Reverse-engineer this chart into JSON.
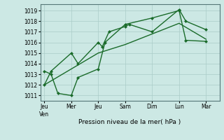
{
  "title": "",
  "xlabel": "Pression niveau de la mer( hPa )",
  "bg_color": "#cce8e4",
  "grid_color": "#aaccc8",
  "line_color": "#1a6b2a",
  "markersize": 2.5,
  "linewidth": 1.0,
  "ylim": [
    1010.5,
    1019.6
  ],
  "yticks": [
    1011,
    1012,
    1013,
    1014,
    1015,
    1016,
    1017,
    1018,
    1019
  ],
  "x_labels": [
    "Jeu|Ven",
    "Mer",
    "Jeu",
    "Sam",
    "Dim",
    "Lun",
    "Mar"
  ],
  "x_positions": [
    0,
    2,
    4,
    6,
    8,
    10,
    12
  ],
  "xlim": [
    -0.3,
    13.0
  ],
  "series1_x": [
    0,
    0.5,
    2,
    2.5,
    4,
    4.3,
    4.8,
    6,
    6.3,
    8,
    10,
    10.5,
    12
  ],
  "series1_y": [
    1012.0,
    1013.3,
    1015.0,
    1014.0,
    1016.0,
    1015.6,
    1017.0,
    1017.5,
    1017.7,
    1017.0,
    1019.1,
    1018.0,
    1017.2
  ],
  "series2_x": [
    0,
    0.5,
    1.0,
    2,
    2.5,
    4,
    4.5,
    6,
    8,
    10,
    10.5,
    12
  ],
  "series2_y": [
    1013.3,
    1013.0,
    1011.2,
    1011.0,
    1012.7,
    1013.5,
    1016.0,
    1017.7,
    1018.3,
    1019.0,
    1016.2,
    1016.1
  ],
  "series3_x": [
    0,
    2,
    4,
    6,
    8,
    10,
    12
  ],
  "series3_y": [
    1012.0,
    1013.5,
    1015.0,
    1015.8,
    1016.8,
    1017.8,
    1016.3
  ],
  "ylabel_fontsize": 5.5,
  "tick_fontsize": 5.5,
  "xlabel_fontsize": 6.5
}
